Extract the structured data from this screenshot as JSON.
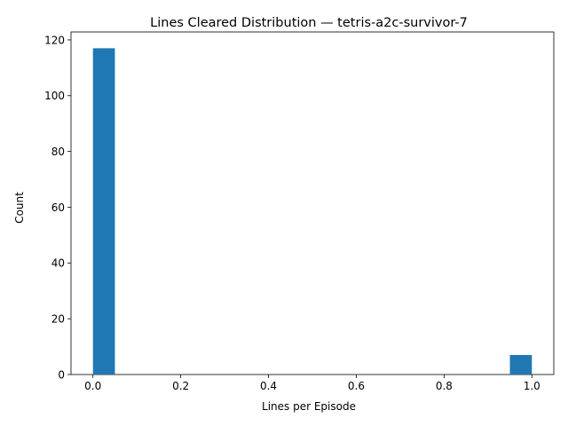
{
  "chart_data": {
    "type": "bar",
    "title": "Lines Cleared Distribution — tetris-a2c-survivor-7",
    "xlabel": "Lines per Episode",
    "ylabel": "Count",
    "bins": [
      {
        "x_start": 0.0,
        "x_end": 0.05,
        "count": 117
      },
      {
        "x_start": 0.95,
        "x_end": 1.0,
        "count": 7
      }
    ],
    "xlim": [
      -0.05,
      1.05
    ],
    "ylim": [
      0,
      122.85
    ],
    "x_ticks": [
      0.0,
      0.2,
      0.4,
      0.6,
      0.8,
      1.0
    ],
    "x_tick_labels": [
      "0.0",
      "0.2",
      "0.4",
      "0.6",
      "0.8",
      "1.0"
    ],
    "y_ticks": [
      0,
      20,
      40,
      60,
      80,
      100,
      120
    ],
    "y_tick_labels": [
      "0",
      "20",
      "40",
      "60",
      "80",
      "100",
      "120"
    ],
    "bar_color": "#1f77b4",
    "grid": false,
    "legend": "none"
  }
}
